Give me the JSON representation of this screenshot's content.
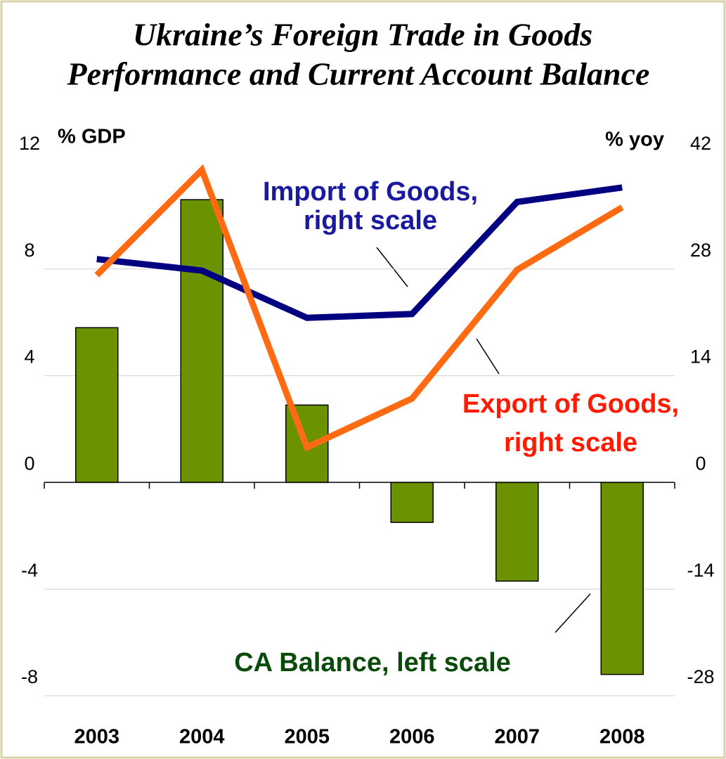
{
  "chart_data": {
    "type": "bar_line",
    "title": [
      "Ukraine’s Foreign Trade in Goods",
      "Performance and Current Account Balance"
    ],
    "ylabel": "% GDP",
    "y2label": "% yoy",
    "categories": [
      "2003",
      "2004",
      "2005",
      "2006",
      "2007",
      "2008"
    ],
    "ylim": [
      -8,
      12
    ],
    "yticks": [
      -8,
      -4,
      0,
      4,
      8,
      12
    ],
    "y2lim": [
      -28,
      42
    ],
    "y2ticks": [
      -28,
      -14,
      0,
      14,
      28,
      42
    ],
    "grid": true,
    "series": [
      {
        "name": "CA Balance, left scale",
        "type": "bar",
        "color": "#6b9200",
        "values": [
          5.8,
          10.6,
          2.9,
          -1.5,
          -3.7,
          -7.2
        ]
      },
      {
        "name": [
          "Import of Goods,",
          "right scale"
        ],
        "type": "line",
        "axis": "y2",
        "color": "#000080",
        "label_color": "#1a1aa0",
        "values": [
          29.3,
          27.8,
          21.6,
          22.1,
          36.8,
          38.7
        ]
      },
      {
        "name": [
          "Export of Goods,",
          "right scale"
        ],
        "type": "line",
        "axis": "y2",
        "color": "#ff6a13",
        "label_color": "#ff1a00",
        "values": [
          27.2,
          41.0,
          4.6,
          11.0,
          27.9,
          36.1
        ]
      }
    ],
    "ca_label_color": "#0a4a0a"
  }
}
